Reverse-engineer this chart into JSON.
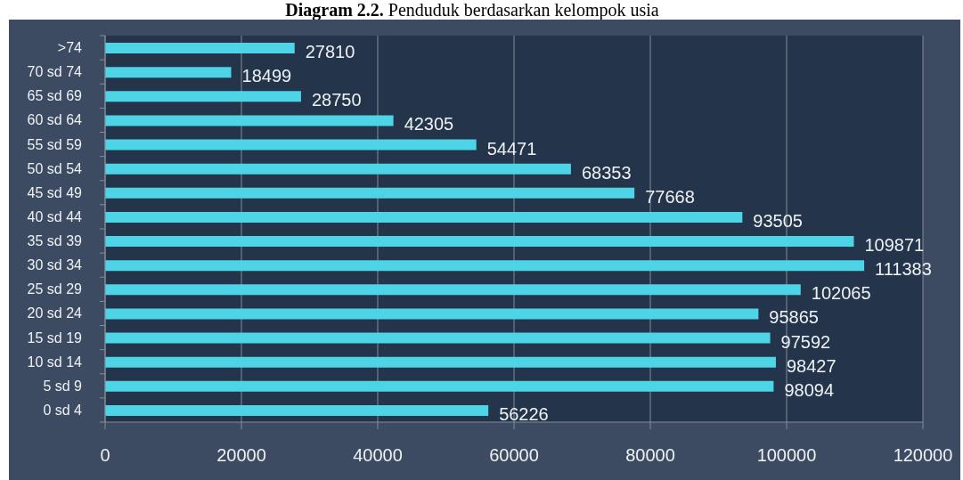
{
  "chart_data": {
    "type": "bar",
    "orientation": "horizontal",
    "title": "Diagram 2.2. Penduduk berdasarkan kelompok usia",
    "categories": [
      ">74",
      "70 sd 74",
      "65 sd 69",
      "60 sd 64",
      "55 sd 59",
      "50 sd 54",
      "45 sd 49",
      "40 sd 44",
      "35 sd 39",
      "30 sd 34",
      "25 sd 29",
      "20 sd 24",
      "15 sd 19",
      "10 sd 14",
      "5 sd 9",
      "0 sd 4"
    ],
    "values": [
      27810,
      18499,
      28750,
      42305,
      54471,
      68353,
      77668,
      93505,
      109871,
      111383,
      102065,
      95865,
      97592,
      98427,
      98094,
      56226
    ],
    "color": "#4dd4e6",
    "xlim": [
      0,
      120000
    ],
    "xticks": [
      0,
      20000,
      40000,
      60000,
      80000,
      100000,
      120000
    ],
    "grid": "x",
    "data_labels": true
  }
}
